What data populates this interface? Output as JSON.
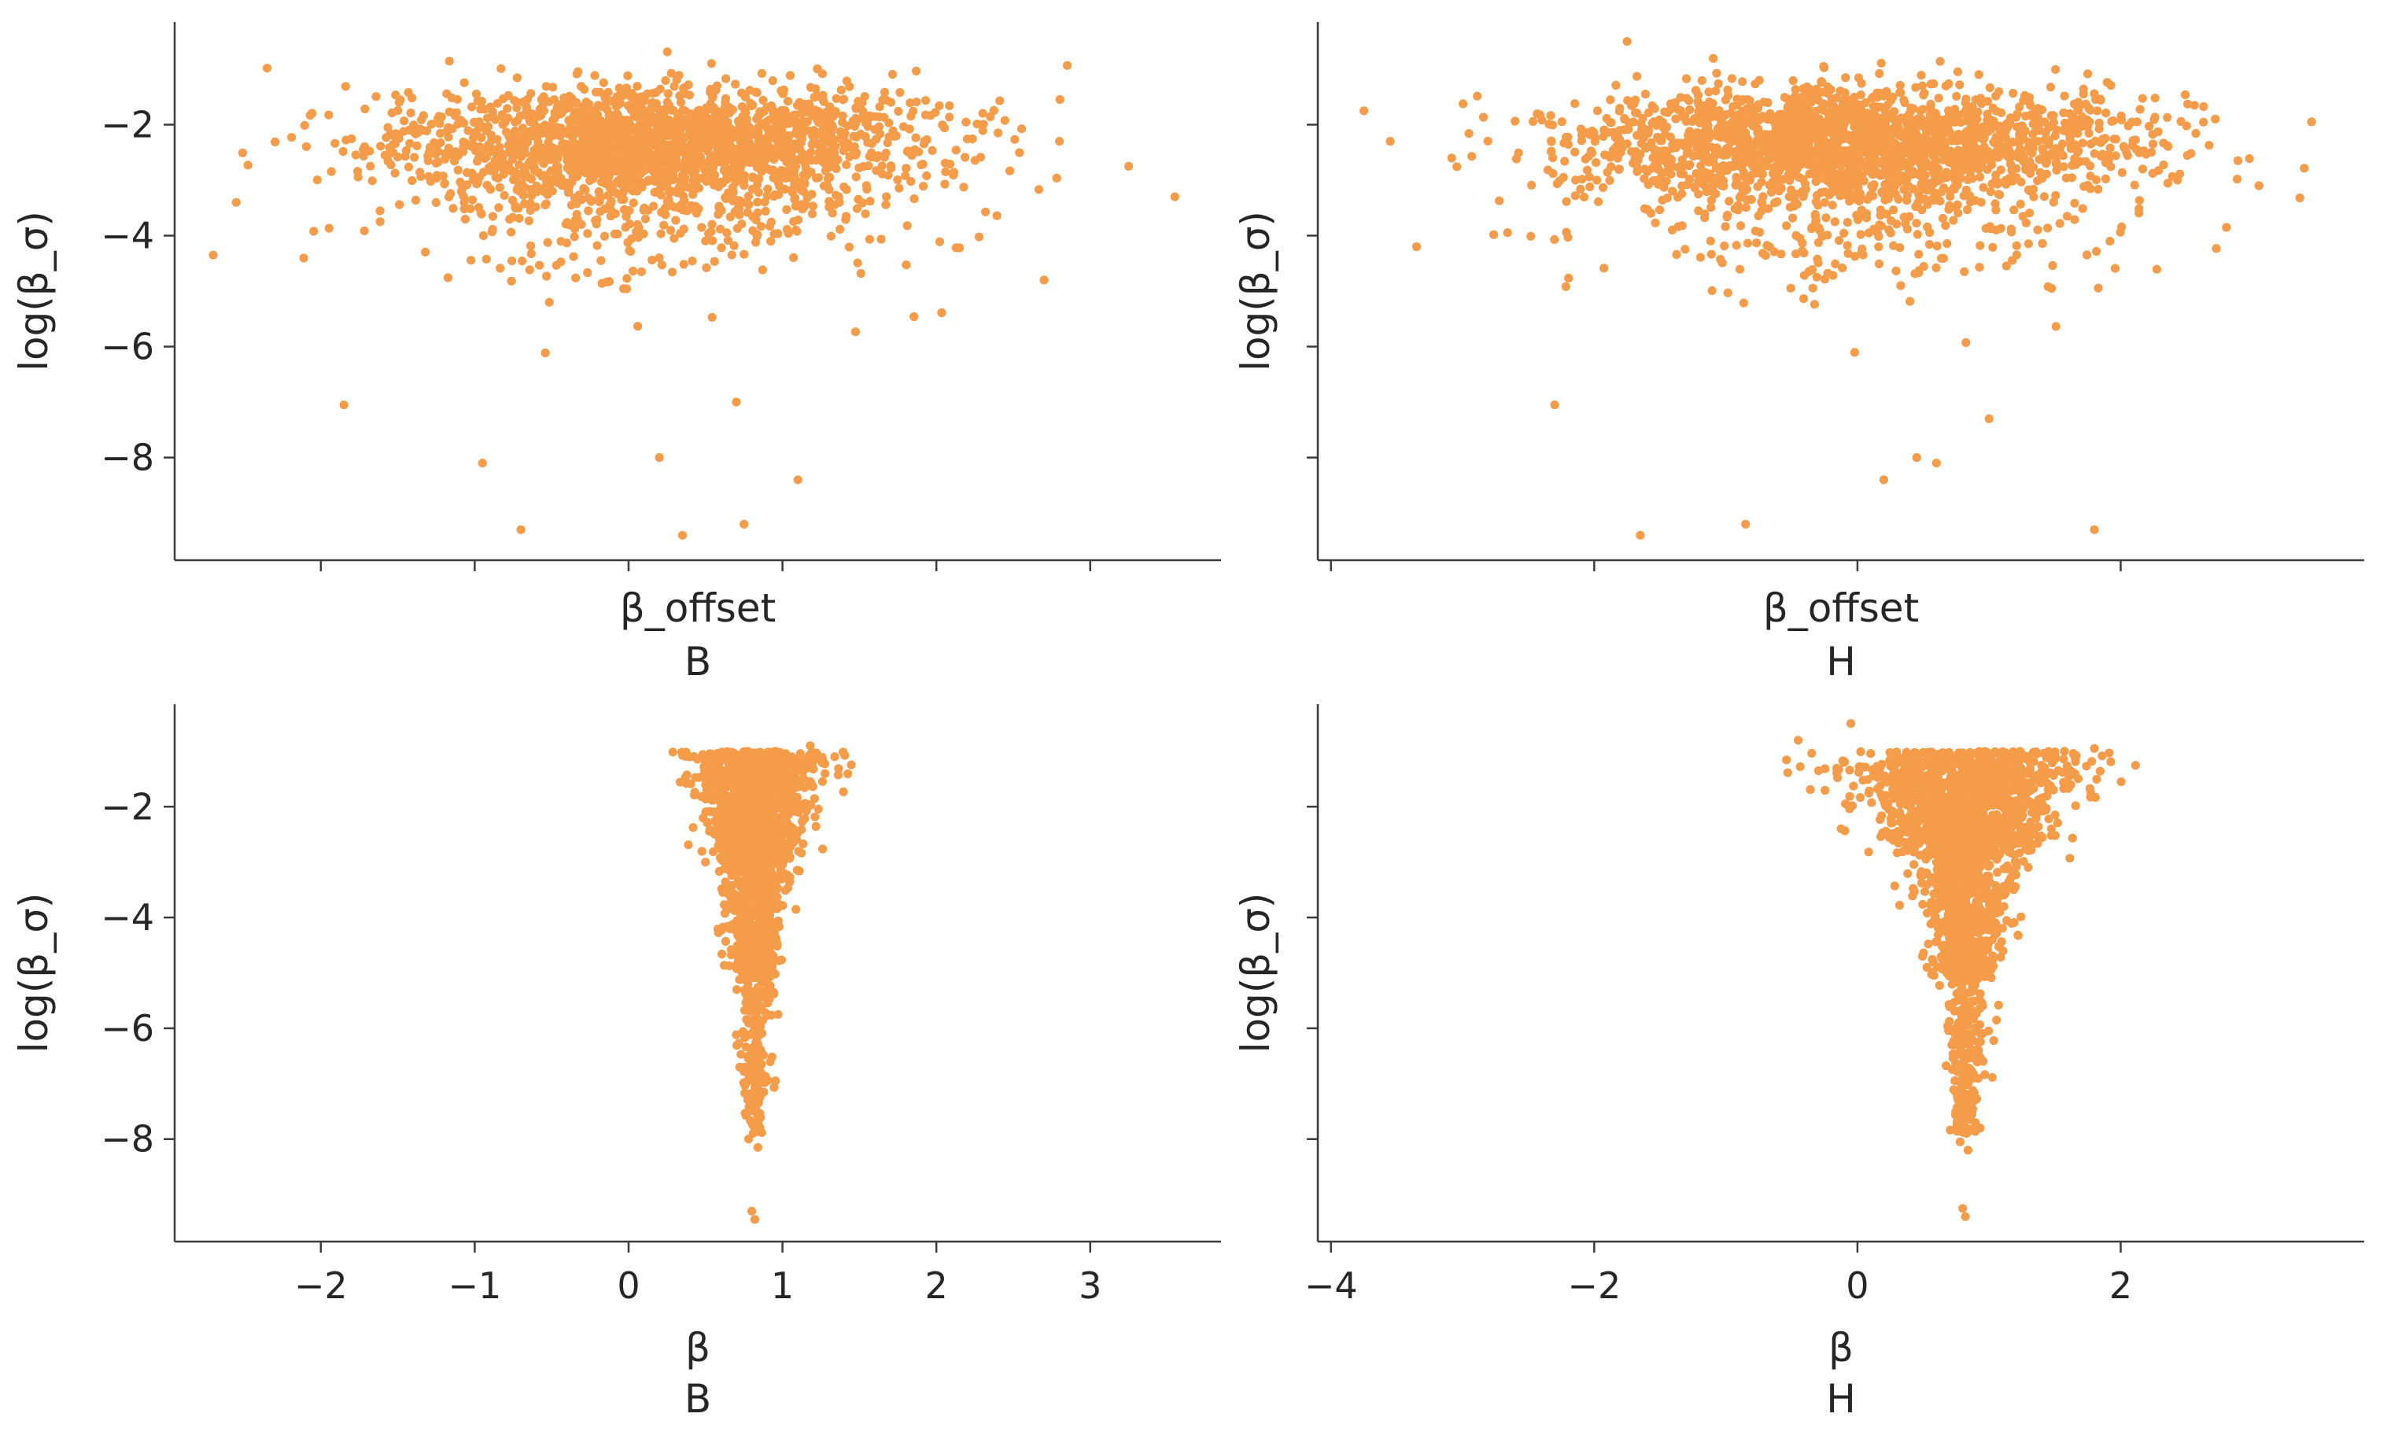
{
  "chart_data": [
    {
      "type": "scatter",
      "panel": "top-left",
      "xlabel": "β_offset",
      "facet_label": "B",
      "ylabel": "log(β_σ)",
      "color": "#f59c4a",
      "x_ticks_shown": false,
      "xlim": [
        -2.95,
        3.85
      ],
      "ylim": [
        -9.85,
        -0.15
      ],
      "yticks": [
        -8,
        -6,
        -4,
        -2
      ],
      "ytick_labels": [
        "−8",
        "−6",
        "−4",
        "−2"
      ],
      "xticks": [
        -2,
        -1,
        0,
        1,
        2,
        3
      ],
      "xtick_labels": [],
      "cloud": {
        "n": 2200,
        "x_mean": 0.2,
        "x_sd": 0.85,
        "y_mode": -2.2,
        "y_spread": 0.45,
        "y_tail": 1.1
      },
      "notable_points": [
        {
          "x": -2.7,
          "y": -4.35
        },
        {
          "x": -2.55,
          "y": -3.4
        },
        {
          "x": 3.25,
          "y": -2.75
        },
        {
          "x": 3.55,
          "y": -3.3
        },
        {
          "x": -0.95,
          "y": -8.1
        },
        {
          "x": -0.7,
          "y": -9.3
        },
        {
          "x": 0.2,
          "y": -8.0
        },
        {
          "x": 0.35,
          "y": -9.4
        },
        {
          "x": 0.75,
          "y": -9.2
        },
        {
          "x": 1.1,
          "y": -8.4
        },
        {
          "x": 2.7,
          "y": -4.8
        },
        {
          "x": -1.85,
          "y": -7.05
        },
        {
          "x": 0.7,
          "y": -7.0
        },
        {
          "x": 2.8,
          "y": -2.3
        }
      ]
    },
    {
      "type": "scatter",
      "panel": "top-right",
      "xlabel": "β_offset",
      "facet_label": "H",
      "ylabel": "log(β_σ)",
      "color": "#f59c4a",
      "x_ticks_shown": false,
      "xlim": [
        -4.1,
        3.85
      ],
      "ylim": [
        -9.85,
        -0.15
      ],
      "yticks": [
        -8,
        -6,
        -4,
        -2
      ],
      "ytick_labels": [],
      "xticks": [
        -4,
        -2,
        0,
        2
      ],
      "xtick_labels": [],
      "cloud": {
        "n": 2200,
        "x_mean": 0.0,
        "x_sd": 1.05,
        "y_mode": -2.2,
        "y_spread": 0.45,
        "y_tail": 1.1
      },
      "notable_points": [
        {
          "x": -3.75,
          "y": -1.75
        },
        {
          "x": -3.55,
          "y": -2.3
        },
        {
          "x": -3.35,
          "y": -4.2
        },
        {
          "x": 3.45,
          "y": -1.95
        },
        {
          "x": 3.05,
          "y": -3.1
        },
        {
          "x": -1.65,
          "y": -9.4
        },
        {
          "x": -0.85,
          "y": -9.2
        },
        {
          "x": 1.8,
          "y": -9.3
        },
        {
          "x": 0.45,
          "y": -8.0
        },
        {
          "x": 0.2,
          "y": -8.4
        },
        {
          "x": 0.6,
          "y": -8.1
        },
        {
          "x": -2.3,
          "y": -7.05
        },
        {
          "x": 1.0,
          "y": -7.3
        },
        {
          "x": -1.75,
          "y": -0.5
        }
      ]
    },
    {
      "type": "scatter",
      "panel": "bottom-left",
      "xlabel": "β",
      "facet_label": "B",
      "ylabel": "log(β_σ)",
      "color": "#f59c4a",
      "x_ticks_shown": true,
      "xlim": [
        -2.95,
        3.85
      ],
      "ylim": [
        -9.85,
        -0.15
      ],
      "yticks": [
        -8,
        -6,
        -4,
        -2
      ],
      "ytick_labels": [
        "−8",
        "−6",
        "−4",
        "−2"
      ],
      "xticks": [
        -2,
        -1,
        0,
        1,
        2,
        3
      ],
      "xtick_labels": [
        "−2",
        "−1",
        "0",
        "1",
        "2",
        "3"
      ],
      "funnel": {
        "n": 2200,
        "center": 0.82,
        "top_width": 0.24,
        "y_top": -0.6,
        "y_bottom": -9.4
      },
      "notable_points": [
        {
          "x": 0.8,
          "y": -9.3
        },
        {
          "x": 0.82,
          "y": -9.45
        },
        {
          "x": 0.78,
          "y": -8.0
        },
        {
          "x": 0.84,
          "y": -8.15
        },
        {
          "x": 1.18,
          "y": -0.9
        },
        {
          "x": 0.5,
          "y": -1.6
        }
      ]
    },
    {
      "type": "scatter",
      "panel": "bottom-right",
      "xlabel": "β",
      "facet_label": "H",
      "ylabel": "log(β_σ)",
      "color": "#f59c4a",
      "x_ticks_shown": true,
      "xlim": [
        -4.1,
        3.85
      ],
      "ylim": [
        -9.85,
        -0.15
      ],
      "yticks": [
        -8,
        -6,
        -4,
        -2
      ],
      "ytick_labels": [],
      "xticks": [
        -4,
        -2,
        0,
        2
      ],
      "xtick_labels": [
        "−4",
        "−2",
        "0",
        "2"
      ],
      "funnel": {
        "n": 2200,
        "center": 0.82,
        "top_width": 0.55,
        "y_top": -0.6,
        "y_bottom": -9.4
      },
      "notable_points": [
        {
          "x": -0.45,
          "y": -0.8
        },
        {
          "x": -0.05,
          "y": -0.5
        },
        {
          "x": 1.8,
          "y": -0.95
        },
        {
          "x": 0.82,
          "y": -9.4
        },
        {
          "x": 0.8,
          "y": -9.25
        },
        {
          "x": 0.78,
          "y": -8.05
        },
        {
          "x": 0.84,
          "y": -8.2
        }
      ]
    }
  ]
}
